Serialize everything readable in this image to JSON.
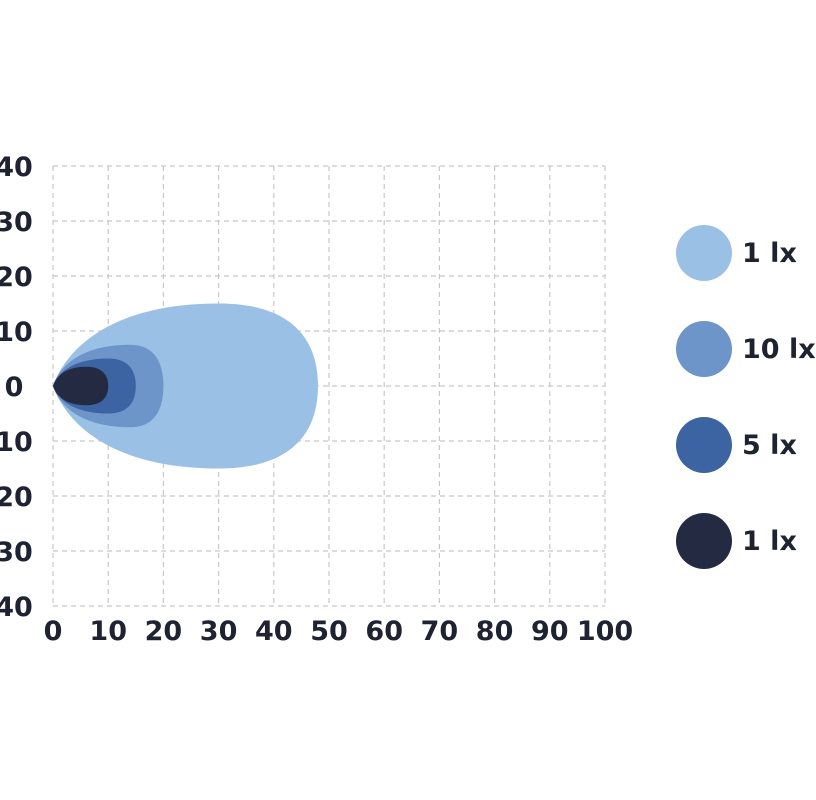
{
  "chart_data": {
    "type": "area",
    "title": "",
    "xlabel": "",
    "ylabel": "",
    "xlim": [
      0,
      100
    ],
    "ylim": [
      -40,
      40
    ],
    "grid": true,
    "legend_position": "right",
    "x_ticks": [
      "0",
      "10",
      "20",
      "30",
      "40",
      "50",
      "60",
      "70",
      "80",
      "90",
      "100"
    ],
    "y_ticks": [
      "40",
      "30",
      "20",
      "10",
      "0",
      "10",
      "20",
      "30",
      "40"
    ],
    "series": [
      {
        "name": "1 lx",
        "color": "#9ac0e6",
        "x_range": [
          0,
          48
        ],
        "max_half_width": 15,
        "x_at_max_half_width": 30
      },
      {
        "name": "10 lx",
        "color": "#6d95c9",
        "x_range": [
          0,
          20
        ],
        "max_half_width": 7.5,
        "x_at_max_half_width": 14
      },
      {
        "name": "5 lx",
        "color": "#3d64a2",
        "x_range": [
          0,
          15
        ],
        "max_half_width": 5,
        "x_at_max_half_width": 10
      },
      {
        "name": "1 lx",
        "color": "#232a42",
        "x_range": [
          0,
          10
        ],
        "max_half_width": 3.5,
        "x_at_max_half_width": 6
      }
    ]
  }
}
